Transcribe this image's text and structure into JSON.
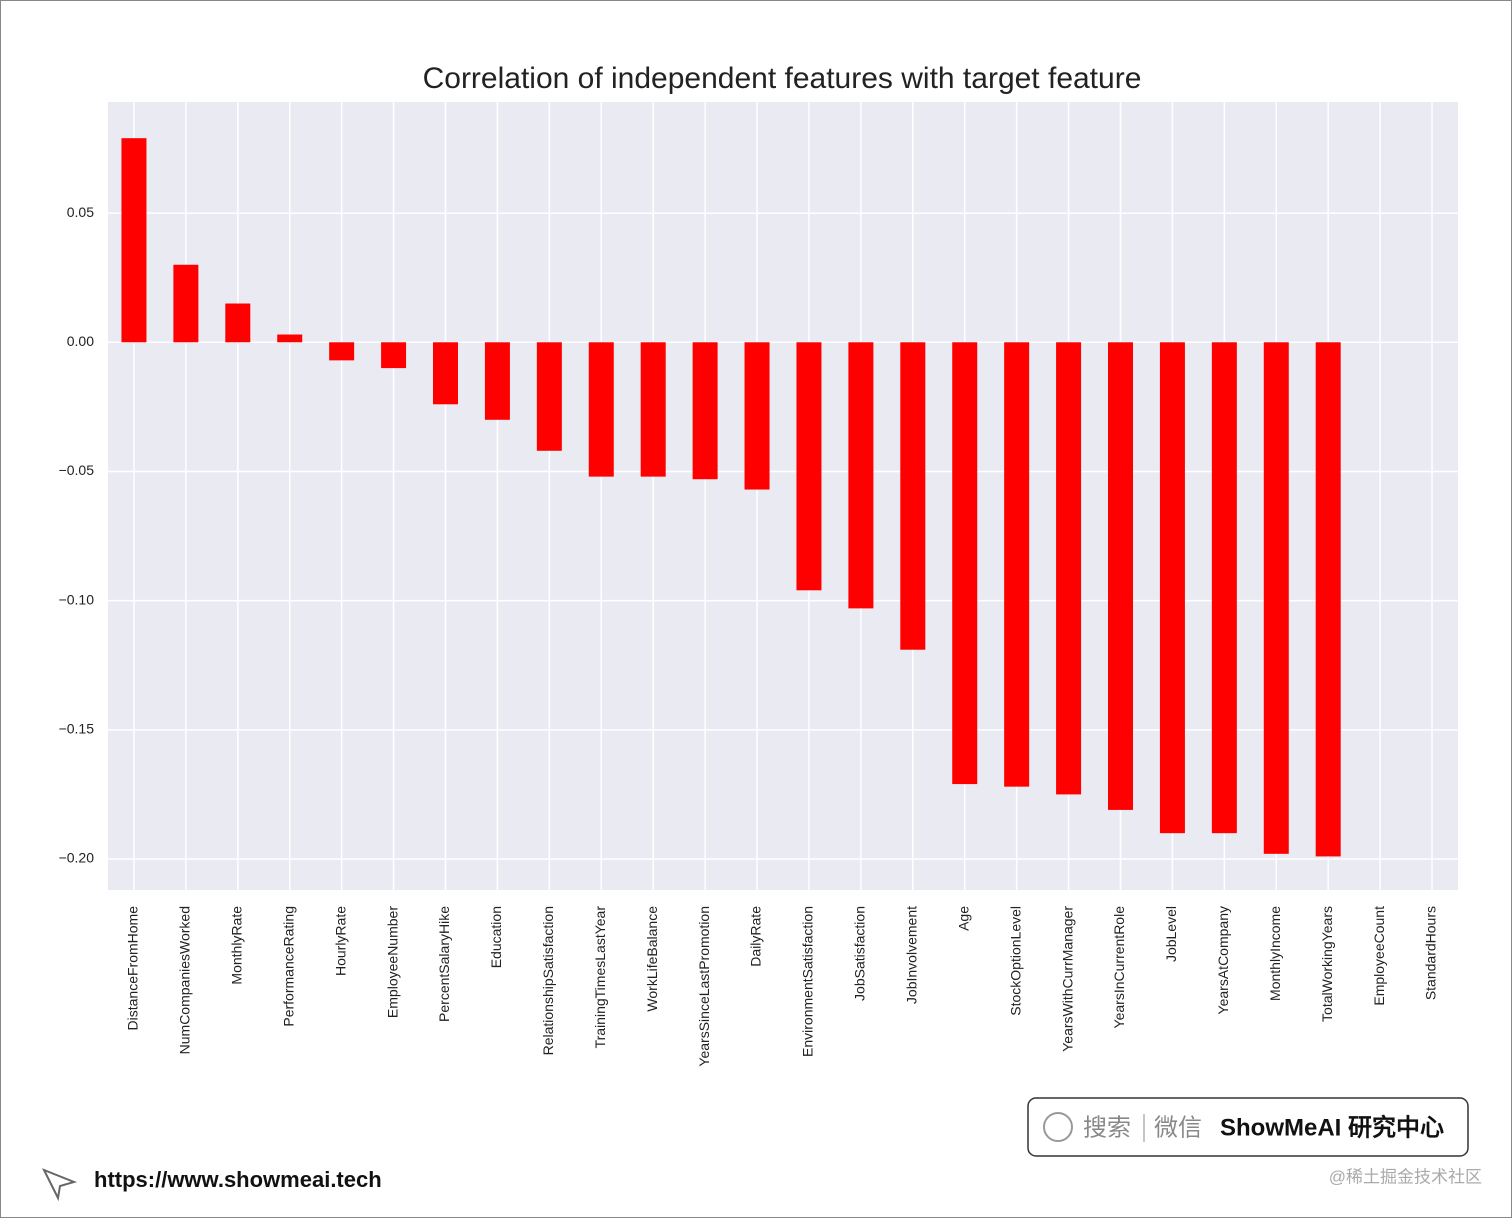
{
  "chart_data": {
    "type": "bar",
    "title": "Correlation of independent features with target feature",
    "categories": [
      "DistanceFromHome",
      "NumCompaniesWorked",
      "MonthlyRate",
      "PerformanceRating",
      "HourlyRate",
      "EmployeeNumber",
      "PercentSalaryHike",
      "Education",
      "RelationshipSatisfaction",
      "TrainingTimesLastYear",
      "WorkLifeBalance",
      "YearsSinceLastPromotion",
      "DailyRate",
      "EnvironmentSatisfaction",
      "JobSatisfaction",
      "JobInvolvement",
      "Age",
      "StockOptionLevel",
      "YearsWithCurrManager",
      "YearsInCurrentRole",
      "JobLevel",
      "YearsAtCompany",
      "MonthlyIncome",
      "TotalWorkingYears",
      "EmployeeCount",
      "StandardHours"
    ],
    "values": [
      0.079,
      0.03,
      0.015,
      0.003,
      -0.007,
      -0.01,
      -0.024,
      -0.03,
      -0.042,
      -0.052,
      -0.052,
      -0.053,
      -0.057,
      -0.096,
      -0.103,
      -0.119,
      -0.171,
      -0.172,
      -0.175,
      -0.181,
      -0.19,
      -0.19,
      -0.198,
      -0.199,
      null,
      null
    ],
    "color": "#ff0000",
    "ylim": [
      -0.212,
      0.093
    ],
    "yticks": [
      {
        "value": 0.05,
        "label": "0.05"
      },
      {
        "value": 0,
        "label": "0.00"
      },
      {
        "value": -0.05,
        "label": "−0.05"
      },
      {
        "value": -0.1,
        "label": "−0.10"
      },
      {
        "value": -0.15,
        "label": "−0.15"
      },
      {
        "value": -0.2,
        "label": "−0.20"
      }
    ],
    "grid": true
  },
  "footer": {
    "search": "搜索",
    "wechat": "微信",
    "brand": "ShowMeAI 研究中心",
    "url": "https://www.showmeai.tech",
    "credit": "@稀土掘金技术社区"
  }
}
